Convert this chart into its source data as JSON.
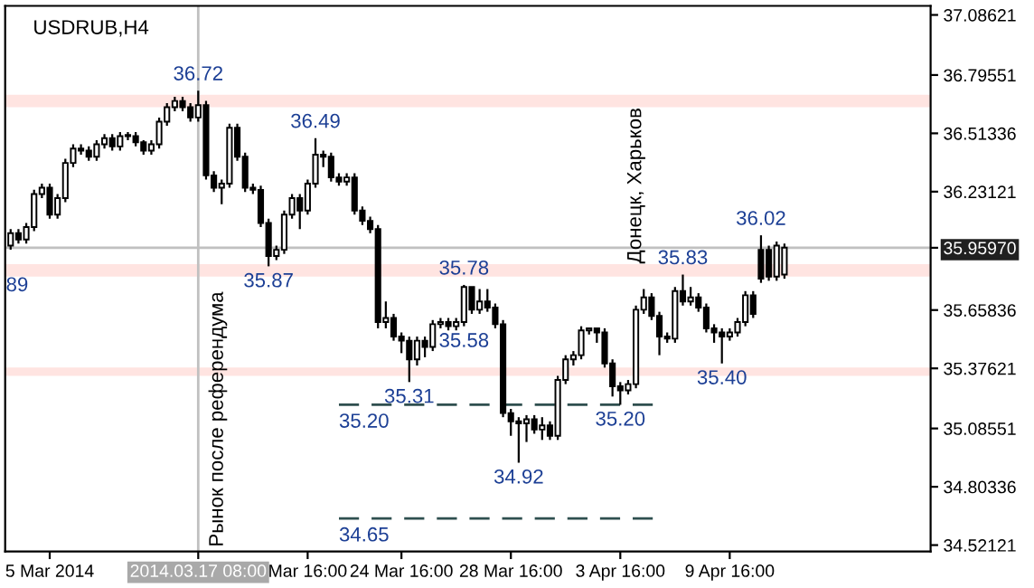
{
  "chart_data": {
    "type": "candlestick",
    "title": "USDRUB,H4",
    "categories": [
      null,
      null,
      null,
      null,
      null,
      "5 Mar 2014",
      null,
      null,
      null,
      null,
      null,
      null,
      null,
      null,
      null,
      null,
      null,
      null,
      null,
      null,
      null,
      null,
      null,
      null,
      "2014.03.17 08:00",
      null,
      null,
      null,
      null,
      null,
      null,
      null,
      null,
      null,
      null,
      null,
      null,
      null,
      "Mar 16:00",
      null,
      null,
      null,
      null,
      null,
      null,
      null,
      null,
      null,
      null,
      null,
      "24 Mar 16:00",
      null,
      null,
      null,
      null,
      null,
      null,
      null,
      null,
      null,
      null,
      null,
      null,
      null,
      "28 Mar 16:00",
      null,
      null,
      null,
      null,
      null,
      null,
      null,
      null,
      null,
      null,
      null,
      null,
      null,
      "3 Apr 16:00",
      null,
      null,
      null,
      null,
      null,
      null,
      null,
      null,
      null,
      null,
      null,
      null,
      null,
      "9 Apr 16:00",
      null,
      null,
      null,
      null,
      null,
      null,
      null,
      null,
      null,
      null,
      null,
      null,
      null,
      null,
      null,
      null,
      null,
      null,
      null,
      null,
      null,
      null,
      null,
      null,
      null
    ],
    "ohlc": [
      [
        35.97,
        36.05,
        35.95,
        36.03
      ],
      [
        36.03,
        36.05,
        35.98,
        36.0
      ],
      [
        36.0,
        36.08,
        35.98,
        36.06
      ],
      [
        36.06,
        36.24,
        36.04,
        36.22
      ],
      [
        36.22,
        36.27,
        36.2,
        36.25
      ],
      [
        36.25,
        36.27,
        36.1,
        36.12
      ],
      [
        36.12,
        36.22,
        36.1,
        36.2
      ],
      [
        36.2,
        36.39,
        36.18,
        36.37
      ],
      [
        36.37,
        36.46,
        36.35,
        36.44
      ],
      [
        36.44,
        36.46,
        36.41,
        36.43
      ],
      [
        36.43,
        36.45,
        36.38,
        36.4
      ],
      [
        36.4,
        36.48,
        36.38,
        36.46
      ],
      [
        36.46,
        36.51,
        36.44,
        36.49
      ],
      [
        36.49,
        36.51,
        36.43,
        36.45
      ],
      [
        36.45,
        36.52,
        36.43,
        36.5
      ],
      [
        36.5,
        36.52,
        36.48,
        36.5
      ],
      [
        36.5,
        36.52,
        36.45,
        36.47
      ],
      [
        36.47,
        36.48,
        36.41,
        36.43
      ],
      [
        36.43,
        36.48,
        36.41,
        36.46
      ],
      [
        36.46,
        36.59,
        36.44,
        36.57
      ],
      [
        36.57,
        36.66,
        36.55,
        36.64
      ],
      [
        36.64,
        36.69,
        36.62,
        36.67
      ],
      [
        36.67,
        36.69,
        36.62,
        36.64
      ],
      [
        36.64,
        36.66,
        36.57,
        36.59
      ],
      [
        36.59,
        36.72,
        36.57,
        36.65
      ],
      [
        36.65,
        36.67,
        36.29,
        36.31
      ],
      [
        36.31,
        36.33,
        36.23,
        36.25
      ],
      [
        36.25,
        36.29,
        36.17,
        36.27
      ],
      [
        36.27,
        36.56,
        36.25,
        36.54
      ],
      [
        36.54,
        36.56,
        36.38,
        36.4
      ],
      [
        36.4,
        36.42,
        36.23,
        36.25
      ],
      [
        36.25,
        36.27,
        36.22,
        36.24
      ],
      [
        36.24,
        36.26,
        36.06,
        36.08
      ],
      [
        36.08,
        36.1,
        35.87,
        35.92
      ],
      [
        35.92,
        35.97,
        35.9,
        35.95
      ],
      [
        35.95,
        36.14,
        35.93,
        36.12
      ],
      [
        36.12,
        36.22,
        36.1,
        36.2
      ],
      [
        36.2,
        36.22,
        36.05,
        36.14
      ],
      [
        36.14,
        36.29,
        36.12,
        36.27
      ],
      [
        36.27,
        36.49,
        36.25,
        36.41
      ],
      [
        36.41,
        36.43,
        36.35,
        36.4
      ],
      [
        36.4,
        36.42,
        36.28,
        36.3
      ],
      [
        36.3,
        36.32,
        36.26,
        36.28
      ],
      [
        36.28,
        36.32,
        36.26,
        36.3
      ],
      [
        36.3,
        36.32,
        36.12,
        36.14
      ],
      [
        36.14,
        36.16,
        36.07,
        36.09
      ],
      [
        36.09,
        36.11,
        36.03,
        36.05
      ],
      [
        36.05,
        36.07,
        35.57,
        35.6
      ],
      [
        35.6,
        35.7,
        35.57,
        35.62
      ],
      [
        35.62,
        35.64,
        35.51,
        35.53
      ],
      [
        35.53,
        35.55,
        35.45,
        35.51
      ],
      [
        35.51,
        35.53,
        35.31,
        35.42
      ],
      [
        35.42,
        35.53,
        35.39,
        35.51
      ],
      [
        35.51,
        35.53,
        35.43,
        35.48
      ],
      [
        35.48,
        35.61,
        35.46,
        35.59
      ],
      [
        35.59,
        35.62,
        35.57,
        35.6
      ],
      [
        35.6,
        35.62,
        35.56,
        35.58
      ],
      [
        35.58,
        35.62,
        35.56,
        35.6
      ],
      [
        35.6,
        35.78,
        35.58,
        35.77
      ],
      [
        35.77,
        35.77,
        35.64,
        35.66
      ],
      [
        35.66,
        35.76,
        35.64,
        35.7
      ],
      [
        35.7,
        35.76,
        35.65,
        35.67
      ],
      [
        35.67,
        35.69,
        35.57,
        35.59
      ],
      [
        35.59,
        35.61,
        35.14,
        35.16
      ],
      [
        35.16,
        35.18,
        35.05,
        35.12
      ],
      [
        35.12,
        35.14,
        34.92,
        35.11
      ],
      [
        35.11,
        35.15,
        35.02,
        35.13
      ],
      [
        35.13,
        35.15,
        35.06,
        35.08
      ],
      [
        35.08,
        35.14,
        35.03,
        35.1
      ],
      [
        35.1,
        35.12,
        35.03,
        35.05
      ],
      [
        35.05,
        35.34,
        35.03,
        35.32
      ],
      [
        35.32,
        35.44,
        35.3,
        35.42
      ],
      [
        35.42,
        35.46,
        35.39,
        35.44
      ],
      [
        35.44,
        35.58,
        35.42,
        35.56
      ],
      [
        35.56,
        35.57,
        35.54,
        35.57
      ],
      [
        35.57,
        35.57,
        35.5,
        35.55
      ],
      [
        35.55,
        35.57,
        35.38,
        35.4
      ],
      [
        35.4,
        35.42,
        35.24,
        35.29
      ],
      [
        35.29,
        35.31,
        35.2,
        35.27
      ],
      [
        35.27,
        35.32,
        35.25,
        35.3
      ],
      [
        35.3,
        35.68,
        35.28,
        35.66
      ],
      [
        35.66,
        35.76,
        35.64,
        35.72
      ],
      [
        35.72,
        35.74,
        35.61,
        35.63
      ],
      [
        35.63,
        35.65,
        35.44,
        35.53
      ],
      [
        35.53,
        35.55,
        35.5,
        35.52
      ],
      [
        35.52,
        35.77,
        35.5,
        35.75
      ],
      [
        35.75,
        35.83,
        35.68,
        35.7
      ],
      [
        35.7,
        35.77,
        35.68,
        35.72
      ],
      [
        35.72,
        35.74,
        35.65,
        35.67
      ],
      [
        35.67,
        35.69,
        35.55,
        35.57
      ],
      [
        35.57,
        35.59,
        35.5,
        35.55
      ],
      [
        35.55,
        35.57,
        35.4,
        35.53
      ],
      [
        35.53,
        35.57,
        35.51,
        35.55
      ],
      [
        35.55,
        35.62,
        35.53,
        35.6
      ],
      [
        35.6,
        35.75,
        35.58,
        35.73
      ],
      [
        35.73,
        35.75,
        35.62,
        35.64
      ],
      [
        35.95,
        36.02,
        35.79,
        35.81
      ],
      [
        35.95,
        35.97,
        35.8,
        35.82
      ],
      [
        35.82,
        35.99,
        35.8,
        35.97
      ],
      [
        35.83,
        35.98,
        35.81,
        35.96
      ],
      null,
      null,
      null,
      null,
      null,
      null,
      null,
      null,
      null,
      null,
      null,
      null,
      null,
      null,
      null,
      null,
      null,
      null
    ],
    "ylim": [
      34.49,
      37.13
    ],
    "yticks": [
      34.52121,
      34.80336,
      35.08551,
      35.37621,
      35.65836,
      {
        "value": 35.9597,
        "label": "35.95970"
      },
      36.23121,
      36.51336,
      36.79551,
      37.08621
    ],
    "ref_lines": [
      {
        "axis": "y",
        "value": 35.9597,
        "color": "#c0c0c0"
      },
      {
        "axis": "x",
        "value": "2014.03.17 08:00",
        "color": "#c0c0c0"
      },
      {
        "axis": "y",
        "value": 35.2,
        "label": "35.20",
        "color": "#2f4f4f",
        "line_style": "dashed"
      },
      {
        "axis": "y",
        "value": 34.65,
        "label": "34.65",
        "color": "#2f4f4f",
        "line_style": "dashed"
      }
    ],
    "bands": [
      {
        "axis": "y",
        "from": 36.64,
        "to": 36.7,
        "color": "#ffe4e1"
      },
      {
        "axis": "y",
        "from": 35.82,
        "to": 35.88,
        "label": "89",
        "color": "#ffe4e1"
      },
      {
        "axis": "y",
        "from": 35.34,
        "to": 35.38,
        "color": "#ffe4e1"
      }
    ],
    "annotations": [
      {
        "text": "36.72",
        "y": 36.72
      },
      {
        "text": "35.87",
        "y": 35.87
      },
      {
        "text": "36.49",
        "y": 36.49
      },
      {
        "text": "35.31",
        "y": 35.31
      },
      {
        "text": "35.78",
        "y": 35.78
      },
      {
        "text": "34.92",
        "y": 34.92
      },
      {
        "text": "35.58",
        "y": 35.58
      },
      {
        "text": "35.20",
        "y": 35.2
      },
      {
        "text": "35.83",
        "y": 35.83
      },
      {
        "text": "35.40",
        "y": 35.4
      },
      {
        "text": "36.02",
        "y": 36.02
      },
      "Рынок после референдума",
      "Донецк, Харьков"
    ],
    "grid": false,
    "legend": false
  }
}
